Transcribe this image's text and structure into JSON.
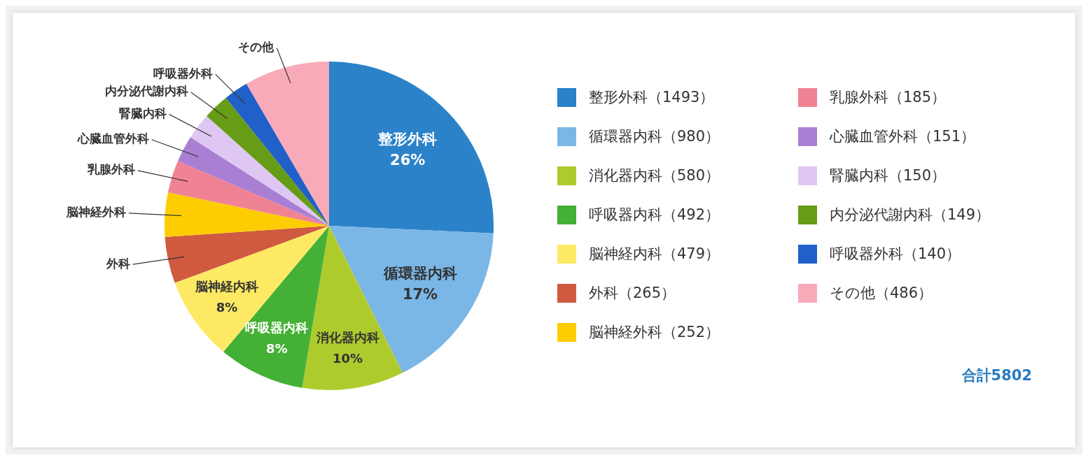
{
  "chart_data": {
    "type": "pie",
    "categories": [
      "整形外科",
      "循環器内科",
      "消化器内科",
      "呼吸器内科",
      "脳神経内科",
      "外科",
      "脳神経外科",
      "乳腺外科",
      "心臓血管外科",
      "腎臓内科",
      "内分泌代謝内科",
      "呼吸器外科",
      "その他"
    ],
    "values": [
      1493,
      980,
      580,
      492,
      479,
      265,
      252,
      185,
      151,
      150,
      149,
      140,
      486
    ],
    "colors": [
      "#2b82c9",
      "#7ab6e6",
      "#aecb2e",
      "#44b035",
      "#fde964",
      "#cf5a40",
      "#fdcd02",
      "#f08393",
      "#a97fd4",
      "#dfc7f3",
      "#679c16",
      "#2060c8",
      "#f8aab8"
    ],
    "value_labels": [
      "（1493）",
      "（980）",
      "（580）",
      "（492）",
      "（479）",
      "（265）",
      "（252）",
      "（185）",
      "（151）",
      "（150）",
      "（149）",
      "（140）",
      "（486）"
    ],
    "legend": "right",
    "annotations": [
      {
        "text": "26%",
        "x": "整形外科"
      },
      {
        "text": "17%",
        "x": "循環器内科"
      },
      {
        "text": "10%",
        "x": "消化器内科"
      },
      {
        "text": "8%",
        "x": "呼吸器内科"
      },
      {
        "text": "8%",
        "x": "脳神経内科"
      },
      "合計5802"
    ]
  }
}
